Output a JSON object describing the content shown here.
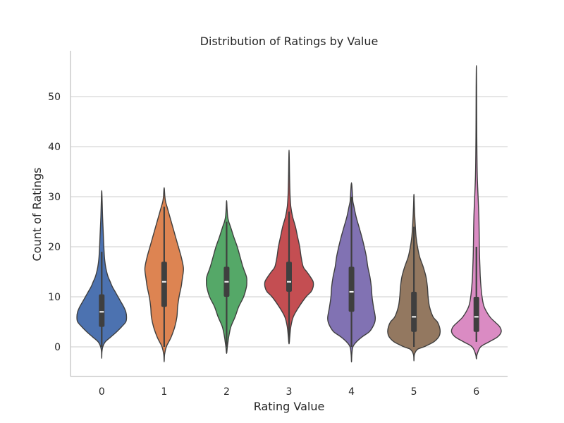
{
  "chart_data": {
    "type": "violin",
    "title": "Distribution of Ratings by Value",
    "xlabel": "Rating Value",
    "ylabel": "Count of Ratings",
    "categories": [
      "0",
      "1",
      "2",
      "3",
      "4",
      "5",
      "6"
    ],
    "yticks": [
      "0",
      "10",
      "20",
      "30",
      "40",
      "50"
    ],
    "ylim": [
      -6,
      59
    ],
    "grid": "horizontal",
    "colors": [
      "#4c72b0",
      "#dd8452",
      "#55a868",
      "#c44e52",
      "#8172b3",
      "#937860",
      "#da8bc3"
    ],
    "violins": [
      {
        "category": "0",
        "min": -2.3,
        "max": 31.2,
        "whisker_low": 0,
        "whisker_high": 19,
        "q1": 4,
        "median": 7,
        "q3": 10.5,
        "profile": [
          [
            -2.3,
            0
          ],
          [
            -1,
            0.3
          ],
          [
            0,
            1.5
          ],
          [
            1,
            5
          ],
          [
            2,
            13
          ],
          [
            3,
            21
          ],
          [
            4,
            28
          ],
          [
            5,
            34
          ],
          [
            6,
            35
          ],
          [
            7,
            34
          ],
          [
            8,
            31
          ],
          [
            9,
            27
          ],
          [
            10,
            23
          ],
          [
            11,
            19
          ],
          [
            12,
            15
          ],
          [
            13,
            12
          ],
          [
            14,
            9
          ],
          [
            15,
            7
          ],
          [
            16,
            5.5
          ],
          [
            17,
            4.5
          ],
          [
            18,
            3.8
          ],
          [
            20,
            3
          ],
          [
            22,
            2.4
          ],
          [
            24,
            1.8
          ],
          [
            26,
            1.2
          ],
          [
            28,
            0.8
          ],
          [
            30,
            0.4
          ],
          [
            31.2,
            0
          ]
        ]
      },
      {
        "category": "1",
        "min": -3,
        "max": 31.8,
        "whisker_low": 0,
        "whisker_high": 28,
        "q1": 8,
        "median": 13,
        "q3": 17,
        "profile": [
          [
            -3,
            0
          ],
          [
            -1.5,
            0.6
          ],
          [
            0,
            3
          ],
          [
            1,
            6.5
          ],
          [
            2,
            10
          ],
          [
            4,
            15
          ],
          [
            6,
            18
          ],
          [
            8,
            19
          ],
          [
            10,
            21
          ],
          [
            12,
            24
          ],
          [
            13,
            25
          ],
          [
            14,
            26
          ],
          [
            15,
            27
          ],
          [
            16,
            27
          ],
          [
            18,
            24
          ],
          [
            20,
            20
          ],
          [
            22,
            16
          ],
          [
            24,
            12
          ],
          [
            26,
            8
          ],
          [
            28,
            4
          ],
          [
            29,
            2
          ],
          [
            30,
            1
          ],
          [
            31.8,
            0
          ]
        ]
      },
      {
        "category": "2",
        "min": -1.3,
        "max": 29.2,
        "whisker_low": 0,
        "whisker_high": 25,
        "q1": 10,
        "median": 13,
        "q3": 16,
        "profile": [
          [
            -1.3,
            0
          ],
          [
            0,
            1
          ],
          [
            1,
            2
          ],
          [
            2,
            3
          ],
          [
            4,
            6
          ],
          [
            6,
            12
          ],
          [
            8,
            17
          ],
          [
            10,
            24
          ],
          [
            12,
            28
          ],
          [
            13,
            28.5
          ],
          [
            14,
            28
          ],
          [
            16,
            23
          ],
          [
            18,
            19
          ],
          [
            20,
            15
          ],
          [
            22,
            10
          ],
          [
            24,
            5.5
          ],
          [
            25,
            3
          ],
          [
            26,
            1.5
          ],
          [
            27.5,
            0.7
          ],
          [
            29.2,
            0
          ]
        ]
      },
      {
        "category": "3",
        "min": 0.6,
        "max": 39.3,
        "whisker_low": 1,
        "whisker_high": 27,
        "q1": 11,
        "median": 13,
        "q3": 17,
        "profile": [
          [
            0.6,
            0
          ],
          [
            2,
            1
          ],
          [
            4,
            2.5
          ],
          [
            6,
            6
          ],
          [
            8,
            14
          ],
          [
            10,
            24
          ],
          [
            11,
            31
          ],
          [
            12,
            34
          ],
          [
            13,
            34
          ],
          [
            14,
            30
          ],
          [
            15,
            25
          ],
          [
            16,
            20
          ],
          [
            18,
            17
          ],
          [
            20,
            15
          ],
          [
            22,
            12
          ],
          [
            24,
            9
          ],
          [
            26,
            5
          ],
          [
            28,
            2.5
          ],
          [
            30,
            1.5
          ],
          [
            32,
            1
          ],
          [
            35,
            0.6
          ],
          [
            37,
            0.4
          ],
          [
            39.3,
            0
          ]
        ]
      },
      {
        "category": "4",
        "min": -3,
        "max": 32.8,
        "whisker_low": 0,
        "whisker_high": 30,
        "q1": 7,
        "median": 11,
        "q3": 16,
        "profile": [
          [
            -3,
            0
          ],
          [
            -1.5,
            0.5
          ],
          [
            0,
            2
          ],
          [
            1,
            7
          ],
          [
            2,
            15
          ],
          [
            3,
            25
          ],
          [
            4,
            30
          ],
          [
            5,
            33
          ],
          [
            6,
            33.5
          ],
          [
            8,
            31
          ],
          [
            10,
            29
          ],
          [
            12,
            28
          ],
          [
            14,
            26
          ],
          [
            16,
            23
          ],
          [
            18,
            21
          ],
          [
            20,
            18
          ],
          [
            22,
            14.5
          ],
          [
            24,
            10.5
          ],
          [
            26,
            6.5
          ],
          [
            28,
            3.5
          ],
          [
            29,
            2
          ],
          [
            30,
            1.5
          ],
          [
            32.8,
            0
          ]
        ]
      },
      {
        "category": "5",
        "min": -2.8,
        "max": 30.5,
        "whisker_low": 0,
        "whisker_high": 24,
        "q1": 3,
        "median": 6,
        "q3": 11,
        "profile": [
          [
            -2.8,
            0
          ],
          [
            -1.5,
            0.7
          ],
          [
            -0.5,
            5
          ],
          [
            0,
            14
          ],
          [
            1,
            28
          ],
          [
            2,
            35
          ],
          [
            3,
            37
          ],
          [
            4,
            36
          ],
          [
            5,
            33
          ],
          [
            6,
            27
          ],
          [
            8,
            22
          ],
          [
            10,
            20
          ],
          [
            12,
            19
          ],
          [
            14,
            17
          ],
          [
            16,
            13
          ],
          [
            18,
            8
          ],
          [
            20,
            5
          ],
          [
            22,
            3
          ],
          [
            24,
            2
          ],
          [
            26,
            1.2
          ],
          [
            28,
            0.6
          ],
          [
            30.5,
            0
          ]
        ]
      },
      {
        "category": "6",
        "min": -2.4,
        "max": 56.2,
        "whisker_low": 1,
        "whisker_high": 20,
        "q1": 3,
        "median": 6,
        "q3": 10,
        "profile": [
          [
            -2.4,
            0
          ],
          [
            -1.5,
            1
          ],
          [
            0,
            6
          ],
          [
            1,
            18
          ],
          [
            2,
            30
          ],
          [
            3,
            35
          ],
          [
            4,
            33
          ],
          [
            5,
            26
          ],
          [
            6,
            19
          ],
          [
            8,
            11
          ],
          [
            10,
            8
          ],
          [
            12,
            6.5
          ],
          [
            14,
            5.5
          ],
          [
            16,
            5
          ],
          [
            18,
            4.5
          ],
          [
            20,
            4.2
          ],
          [
            22,
            4
          ],
          [
            24,
            3.8
          ],
          [
            26,
            3.5
          ],
          [
            28,
            3
          ],
          [
            30,
            2.4
          ],
          [
            32,
            1.8
          ],
          [
            34,
            1.3
          ],
          [
            36,
            1
          ],
          [
            40,
            0.7
          ],
          [
            44,
            0.5
          ],
          [
            48,
            0.4
          ],
          [
            52,
            0.3
          ],
          [
            56.2,
            0
          ]
        ]
      }
    ]
  }
}
